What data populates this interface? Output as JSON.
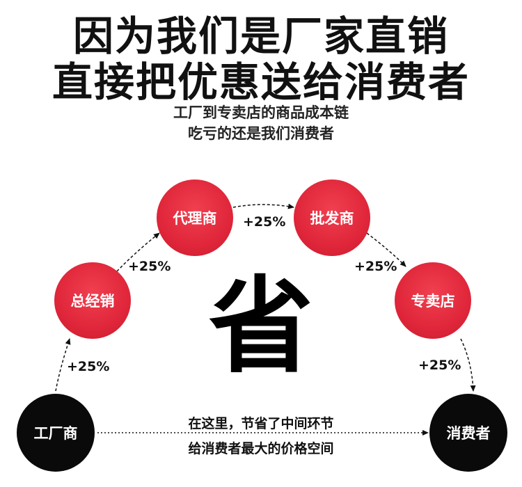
{
  "headline": {
    "line1": "因为我们是厂家直销",
    "line2": "直接把优惠送给消费者"
  },
  "subline": {
    "line1": "工厂到专卖店的商品成本链",
    "line2": "吃亏的还是我们消费者"
  },
  "nodes": {
    "factory": "工厂商",
    "general_distributor": "总经销",
    "agent": "代理商",
    "wholesaler": "批发商",
    "store": "专卖店",
    "consumer": "消费者"
  },
  "markups": [
    "+25%",
    "+25%",
    "+25%",
    "+25%",
    "+25%"
  ],
  "center_char": "省",
  "bottom_note": {
    "line1": "在这里，节省了中间环节",
    "line2": "给消费者最大的价格空间"
  },
  "colors": {
    "red_node": "#e0263a",
    "black_node": "#0a0a0a",
    "text": "#111111"
  }
}
